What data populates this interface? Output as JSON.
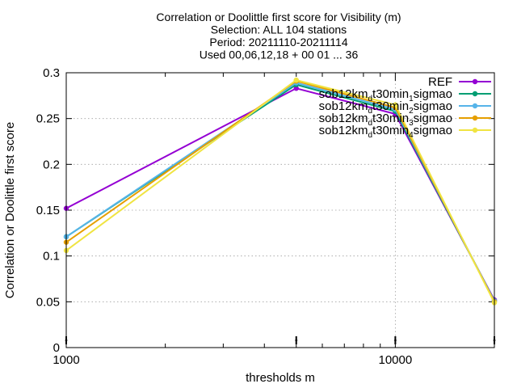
{
  "chart_data": {
    "type": "line",
    "title_lines": [
      "Correlation or Doolittle first score  for Visibility (m)",
      "Selection: ALL    104 stations",
      "Period: 20211110-20211114",
      "Used 00,06,12,18 + 00 01 ... 36"
    ],
    "xlabel": "thresholds m",
    "ylabel": "Correlation or Doolittle first score",
    "x_scale": "log",
    "xlim": [
      1000,
      20000
    ],
    "ylim": [
      0,
      0.3
    ],
    "x_ticks": [
      {
        "value": 1000,
        "label": "1000"
      },
      {
        "value": 10000,
        "label": "10000"
      }
    ],
    "y_ticks": [
      {
        "value": 0,
        "label": "0"
      },
      {
        "value": 0.05,
        "label": "0.05"
      },
      {
        "value": 0.1,
        "label": "0.1"
      },
      {
        "value": 0.15,
        "label": "0.15"
      },
      {
        "value": 0.2,
        "label": "0.2"
      },
      {
        "value": 0.25,
        "label": "0.25"
      },
      {
        "value": 0.3,
        "label": "0.3"
      }
    ],
    "grid": true,
    "legend_position": "top-right",
    "x": [
      1000,
      5000,
      10000,
      20000
    ],
    "series": [
      {
        "name": "REF",
        "legend_parts": [
          [
            "REF",
            ""
          ]
        ],
        "color": "#9400d3",
        "values": [
          0.152,
          0.283,
          0.255,
          0.052
        ]
      },
      {
        "name": "sob12km_d t30min_1 sigmao",
        "legend_parts": [
          [
            "sob12km",
            ""
          ],
          [
            "d",
            "sub"
          ],
          [
            "t30min",
            ""
          ],
          [
            "1",
            "sub"
          ],
          [
            "sigmao",
            ""
          ]
        ],
        "color": "#009e73",
        "values": [
          0.121,
          0.287,
          0.258,
          0.051
        ]
      },
      {
        "name": "sob12km_d t30min_2 sigmao",
        "legend_parts": [
          [
            "sob12km",
            ""
          ],
          [
            "d",
            "sub"
          ],
          [
            "t30min",
            ""
          ],
          [
            "2",
            "sub"
          ],
          [
            "sigmao",
            ""
          ]
        ],
        "color": "#56b4e9",
        "values": [
          0.121,
          0.289,
          0.26,
          0.051
        ]
      },
      {
        "name": "sob12km_d t30min_3 sigmao",
        "legend_parts": [
          [
            "sob12km",
            ""
          ],
          [
            "d",
            "sub"
          ],
          [
            "t30min",
            ""
          ],
          [
            "3",
            "sub"
          ],
          [
            "sigmao",
            ""
          ]
        ],
        "color": "#e69f00",
        "values": [
          0.115,
          0.291,
          0.262,
          0.05
        ]
      },
      {
        "name": "sob12km_d t30min_4 sigmao",
        "legend_parts": [
          [
            "sob12km",
            ""
          ],
          [
            "d",
            "sub"
          ],
          [
            "t30min",
            ""
          ],
          [
            "4",
            "sub"
          ],
          [
            "sigmao",
            ""
          ]
        ],
        "color": "#f0e442",
        "values": [
          0.106,
          0.292,
          0.265,
          0.049
        ]
      }
    ]
  }
}
